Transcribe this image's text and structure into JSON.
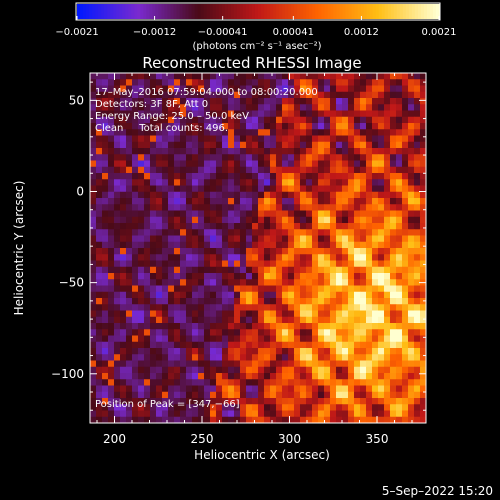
{
  "chart_data": {
    "type": "heatmap",
    "title": "Reconstructed RHESSI Image",
    "xlabel": "Heliocentric X (arcsec)",
    "ylabel": "Heliocentric Y (arcsec)",
    "xlim": [
      186,
      378
    ],
    "ylim": [
      -127,
      65
    ],
    "x_ticks": [
      200,
      250,
      300,
      350
    ],
    "y_ticks": [
      50,
      0,
      -50,
      -100
    ],
    "x_tick_labels": [
      "200",
      "250",
      "300",
      "350"
    ],
    "y_tick_labels": [
      "50",
      "0",
      "−50",
      "−100"
    ],
    "colorbar": {
      "colors": [
        "#0018ff",
        "#7a2ad0",
        "#4a0a18",
        "#c01818",
        "#ff6400",
        "#ffbe14",
        "#ffffd0"
      ],
      "vmin": -0.0021,
      "vmax": 0.0021,
      "ticks": [
        -0.0021,
        -0.0012,
        -0.00041,
        0.00041,
        0.0012,
        0.0021
      ],
      "tick_labels": [
        "−0.0021",
        "−0.0012",
        "−0.00041",
        "0.00041",
        "0.0012",
        "0.0021"
      ],
      "unit_label": "(photons cm⁻² s⁻¹ asec⁻²)"
    },
    "annotations": [
      "17–May–2016 07:59:04.000 to 08:00:20.000",
      "Detectors: 3F 8F, Att 0",
      "Energy Range: 25.0 – 50.0 keV",
      "Clean     Total counts: 496.",
      "Position of Peak = [347,−66]"
    ],
    "peak": [
      347,
      -66
    ],
    "timestamp": "5–Sep–2022 15:20"
  }
}
